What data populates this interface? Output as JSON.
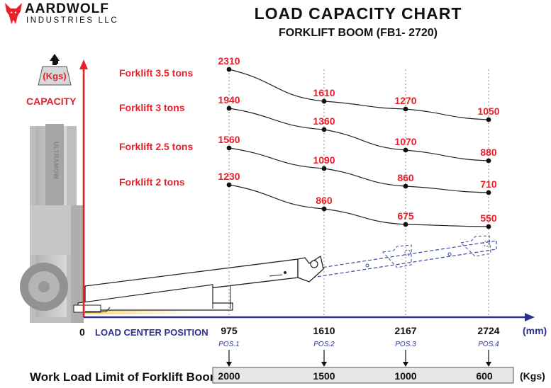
{
  "brand": {
    "name": "AARDWOLF",
    "subtitle": "INDUSTRIES LLC"
  },
  "header": {
    "title": "LOAD CAPACITY CHART",
    "subtitle": "FORKLIFT BOOM (FB1- 2720)"
  },
  "colors": {
    "accent": "#e8202a",
    "axis_x": "#2e3192",
    "curve": "#222222",
    "table_fill": "#e6e6e6"
  },
  "chart_data": {
    "type": "line",
    "ylabel": "CAPACITY",
    "y_unit": "(Kgs)",
    "xlabel": "LOAD CENTER POSITION",
    "x_unit": "(mm)",
    "x_origin_label": "0",
    "x": [
      975,
      1610,
      2167,
      2724
    ],
    "x_tick_labels": [
      "975",
      "1610",
      "2167",
      "2724"
    ],
    "positions": [
      "POS.1",
      "POS.2",
      "POS.3",
      "POS.4"
    ],
    "series": [
      {
        "name": "Forklift 3.5 tons",
        "values": [
          2310,
          1610,
          1270,
          1050
        ]
      },
      {
        "name": "Forklift 3 tons",
        "values": [
          1940,
          1360,
          1070,
          880
        ]
      },
      {
        "name": "Forklift 2.5 tons",
        "values": [
          1560,
          1090,
          860,
          710
        ]
      },
      {
        "name": "Forklift 2 tons",
        "values": [
          1230,
          860,
          675,
          550
        ]
      }
    ],
    "work_load_limit": {
      "label": "Work Load Limit of Forklift Boom",
      "unit": "(Kgs)",
      "values": [
        "2000",
        "1500",
        "1000",
        "600"
      ]
    }
  }
}
